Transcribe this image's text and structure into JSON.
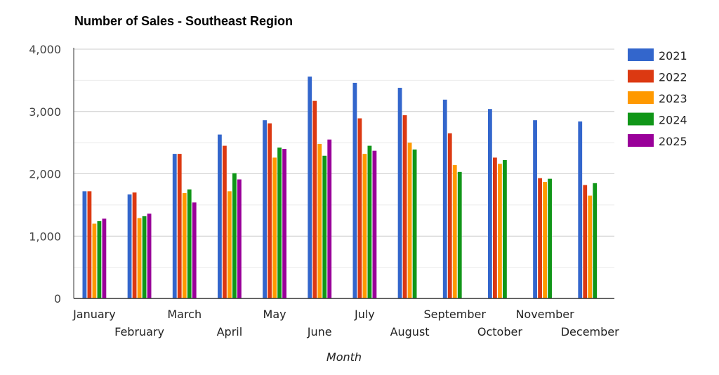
{
  "chart_data": {
    "type": "bar",
    "title": "Number of Sales - Southeast Region",
    "xlabel": "Month",
    "ylabel": "",
    "ylim": [
      0,
      4000
    ],
    "yticks": [
      0,
      1000,
      2000,
      3000,
      4000
    ],
    "ytick_labels": [
      "0",
      "1,000",
      "2,000",
      "3,000",
      "4,000"
    ],
    "grid": true,
    "legend_position": "right",
    "categories": [
      "January",
      "February",
      "March",
      "April",
      "May",
      "June",
      "July",
      "August",
      "September",
      "October",
      "November",
      "December"
    ],
    "series": [
      {
        "name": "2021",
        "color": "#3366cc",
        "values": [
          1720,
          1670,
          2320,
          2630,
          2860,
          3560,
          3460,
          3380,
          3190,
          3040,
          2860,
          2840
        ]
      },
      {
        "name": "2022",
        "color": "#dc3912",
        "values": [
          1720,
          1700,
          2320,
          2450,
          2810,
          3170,
          2890,
          2940,
          2650,
          2260,
          1930,
          1820
        ]
      },
      {
        "name": "2023",
        "color": "#ff9900",
        "values": [
          1200,
          1290,
          1690,
          1720,
          2260,
          2480,
          2320,
          2500,
          2140,
          2160,
          1870,
          1650
        ]
      },
      {
        "name": "2024",
        "color": "#109618",
        "values": [
          1240,
          1320,
          1750,
          2010,
          2420,
          2290,
          2450,
          2390,
          2030,
          2220,
          1920,
          1850
        ]
      },
      {
        "name": "2025",
        "color": "#990099",
        "values": [
          1280,
          1360,
          1540,
          1910,
          2400,
          2550,
          2370,
          null,
          null,
          null,
          null,
          null
        ]
      }
    ]
  }
}
